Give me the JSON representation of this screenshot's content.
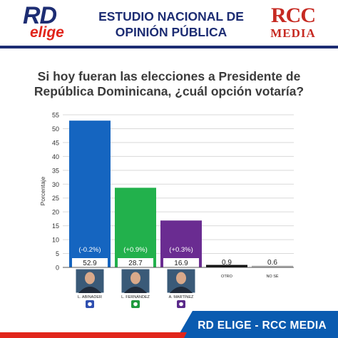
{
  "header": {
    "logo_rd": "RD",
    "logo_elige": "elige",
    "title_line1": "ESTUDIO NACIONAL DE",
    "title_line2": "OPINIÓN PÚBLICA",
    "logo_rcc": "RCC",
    "logo_media": "MEDIA"
  },
  "question": {
    "line1": "Si hoy fueran las elecciones a Presidente de",
    "line2": "República Dominicana, ¿cuál opción votaría?"
  },
  "chart_data": {
    "type": "bar",
    "title": "",
    "xlabel": "",
    "ylabel": "Porcentaje",
    "ylim": [
      0,
      55
    ],
    "yticks": [
      0,
      5,
      10,
      15,
      20,
      25,
      30,
      35,
      40,
      45,
      50,
      55
    ],
    "grid": true,
    "categories": [
      "L. ABINADER",
      "L. FERNÁNDEZ",
      "A. MARTÍNEZ",
      "OTRO",
      "NO SÉ"
    ],
    "values": [
      52.9,
      28.7,
      16.9,
      0.9,
      0.6
    ],
    "value_labels": [
      "52.9",
      "28.7",
      "16.9",
      "0.9",
      "0.6"
    ],
    "changes": [
      "(-0.2%)",
      "(+0.9%)",
      "(+0.3%)",
      "",
      ""
    ],
    "colors": [
      "#1565c0",
      "#22b14c",
      "#6a2c91",
      "#111111",
      "#b0b0b0"
    ],
    "candidate_photos": [
      "candidate-photo",
      "candidate-photo",
      "candidate-photo",
      "",
      ""
    ],
    "party_icons": [
      "prm-party-icon",
      "fp-party-icon",
      "pld-party-icon",
      "",
      ""
    ]
  },
  "footer": {
    "text": "RD ELIGE - RCC MEDIA",
    "colors": {
      "blue": "#0a5bb0",
      "red": "#e1251b"
    }
  }
}
